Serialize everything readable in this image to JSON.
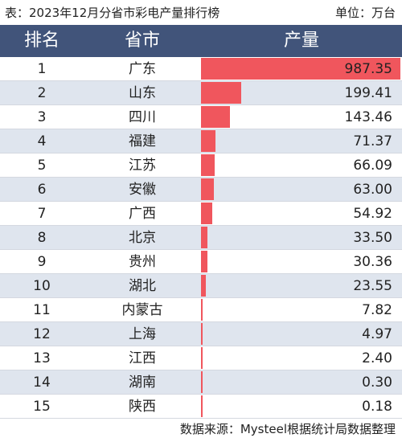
{
  "header": {
    "title": "表：2023年12月分省市彩电产量排行榜",
    "unit": "单位：万台"
  },
  "table": {
    "columns": [
      "排名",
      "省市",
      "产量"
    ],
    "bar_color": "#f0565d",
    "header_color": "#41547a",
    "alt_row_color": "#dfe5ee",
    "rows": [
      {
        "rank": "1",
        "province": "广东",
        "output": "987.35",
        "value": 987.35
      },
      {
        "rank": "2",
        "province": "山东",
        "output": "199.41",
        "value": 199.41
      },
      {
        "rank": "3",
        "province": "四川",
        "output": "143.46",
        "value": 143.46
      },
      {
        "rank": "4",
        "province": "福建",
        "output": "71.37",
        "value": 71.37
      },
      {
        "rank": "5",
        "province": "江苏",
        "output": "66.09",
        "value": 66.09
      },
      {
        "rank": "6",
        "province": "安徽",
        "output": "63.00",
        "value": 63.0
      },
      {
        "rank": "7",
        "province": "广西",
        "output": "54.92",
        "value": 54.92
      },
      {
        "rank": "8",
        "province": "北京",
        "output": "33.50",
        "value": 33.5
      },
      {
        "rank": "9",
        "province": "贵州",
        "output": "30.36",
        "value": 30.36
      },
      {
        "rank": "10",
        "province": "湖北",
        "output": "23.55",
        "value": 23.55
      },
      {
        "rank": "11",
        "province": "内蒙古",
        "output": "7.82",
        "value": 7.82
      },
      {
        "rank": "12",
        "province": "上海",
        "output": "4.97",
        "value": 4.97
      },
      {
        "rank": "13",
        "province": "江西",
        "output": "2.40",
        "value": 2.4
      },
      {
        "rank": "14",
        "province": "湖南",
        "output": "0.30",
        "value": 0.3
      },
      {
        "rank": "15",
        "province": "陕西",
        "output": "0.18",
        "value": 0.18
      }
    ]
  },
  "footer": {
    "source": "数据来源：Mysteel根据统计局数据整理"
  }
}
